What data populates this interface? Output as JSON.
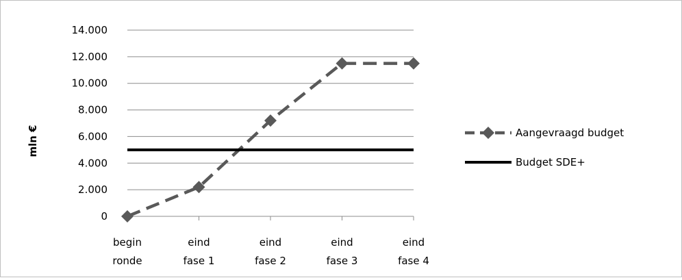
{
  "chart_data": {
    "type": "line",
    "title": "",
    "xlabel": "",
    "ylabel": "mln €",
    "ylim": [
      0,
      14000
    ],
    "yticks": [
      0,
      2000,
      4000,
      6000,
      8000,
      10000,
      12000,
      14000
    ],
    "ytick_labels": [
      "0",
      "2.000",
      "4.000",
      "6.000",
      "8.000",
      "10.000",
      "12.000",
      "14.000"
    ],
    "categories": [
      [
        "begin",
        "ronde"
      ],
      [
        "eind",
        "fase 1"
      ],
      [
        "eind",
        "fase 2"
      ],
      [
        "eind",
        "fase 3"
      ],
      [
        "eind",
        "fase 4"
      ]
    ],
    "grid": "horizontal",
    "legend_position": "right",
    "series": [
      {
        "name": "Aangevraagd budget",
        "values": [
          0,
          2200,
          7200,
          11500,
          11500
        ],
        "style": "dashed",
        "marker": "diamond",
        "color": "#595959"
      },
      {
        "name": "Budget SDE+",
        "values": [
          5000,
          5000,
          5000,
          5000,
          5000
        ],
        "style": "solid",
        "marker": "none",
        "color": "#000000"
      }
    ]
  },
  "colors": {
    "grid": "#8c8c8c",
    "axis": "#8c8c8c",
    "frame": "#bfbfbf"
  }
}
